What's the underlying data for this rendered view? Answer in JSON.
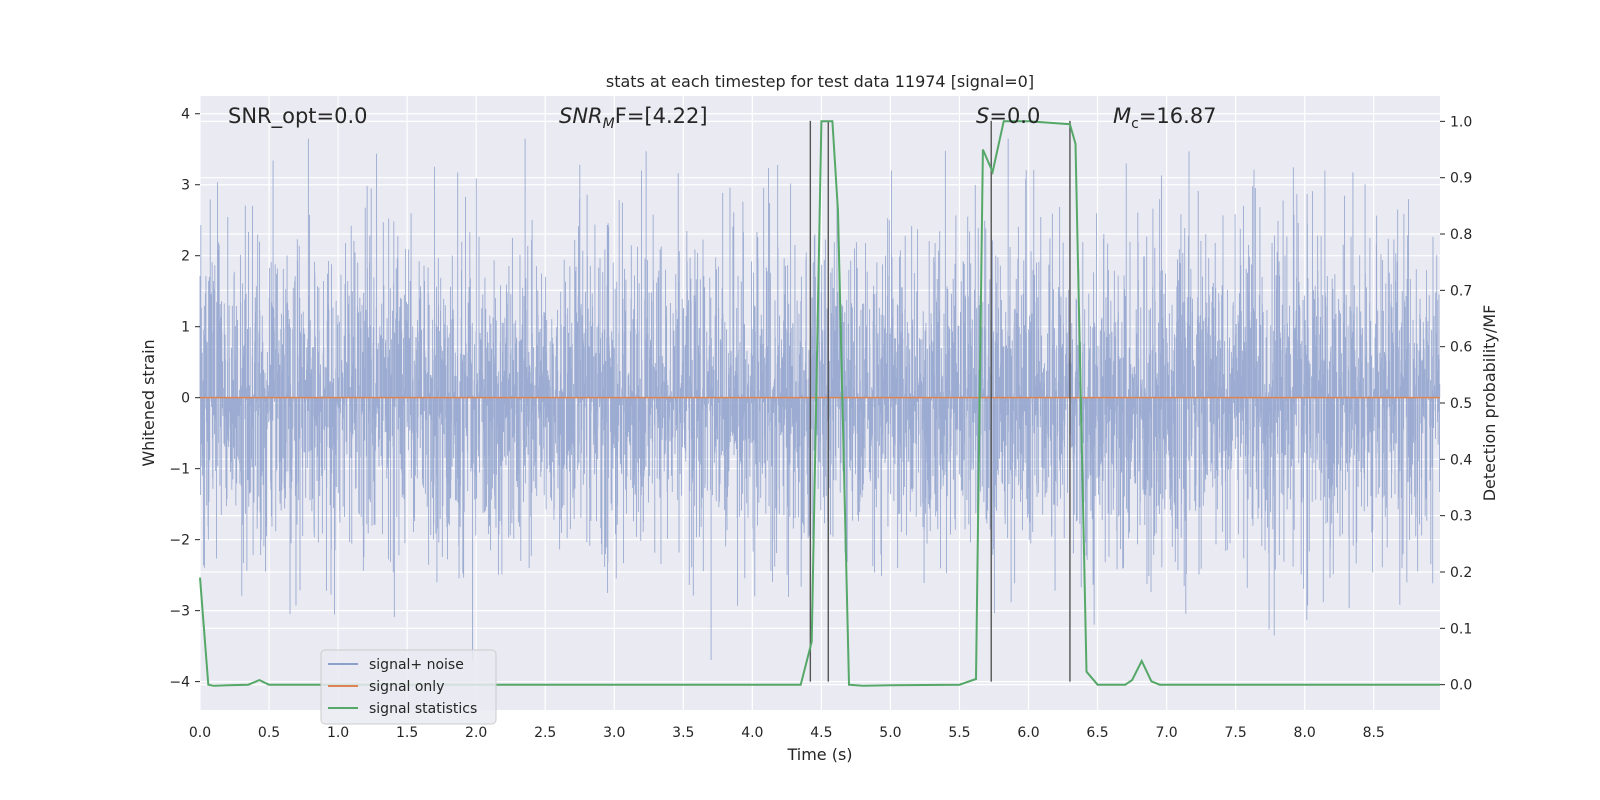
{
  "chart_data": {
    "type": "line",
    "title": "stats at each timestep for test data 11974 [signal=0]",
    "xlabel": "Time (s)",
    "ylabel": "Whitened strain",
    "y2label": "Detection probability/MF",
    "xlim": [
      0,
      8.98
    ],
    "ylim": [
      -4.4,
      4.25
    ],
    "y2lim": [
      -0.045,
      1.045
    ],
    "x_ticks": [
      "0.0",
      "0.5",
      "1.0",
      "1.5",
      "2.0",
      "2.5",
      "3.0",
      "3.5",
      "4.0",
      "4.5",
      "5.0",
      "5.5",
      "6.0",
      "6.5",
      "7.0",
      "7.5",
      "8.0",
      "8.5"
    ],
    "y_ticks": [
      "−4",
      "−3",
      "−2",
      "−1",
      "0",
      "1",
      "2",
      "3",
      "4"
    ],
    "y2_ticks": [
      "0.0",
      "0.1",
      "0.2",
      "0.3",
      "0.4",
      "0.5",
      "0.6",
      "0.7",
      "0.8",
      "0.9",
      "1.0"
    ],
    "grid": true,
    "legend_position": "lower-left",
    "colors": {
      "noise": "#8da0cb",
      "signal": "#dd8452",
      "stats": "#55a868",
      "vlines": "#555555",
      "background": "#eaeaf2",
      "grid": "#ffffff"
    },
    "annotations": {
      "snr_opt": "SNR_opt=0.0",
      "snr_mf_base": "SNR",
      "snr_mf_sub": "M",
      "snr_mf_rest": "F=[4.22]",
      "s_label": "S",
      "s_rest": "=0.0",
      "mc_base": "M",
      "mc_sub": "c",
      "mc_rest": "=16.87"
    },
    "series": [
      {
        "name": "signal+ noise",
        "kind": "noise",
        "description_range": [
          -3.6,
          3.6
        ],
        "x_range": [
          0,
          8.98
        ]
      },
      {
        "name": "signal only",
        "kind": "constant",
        "value": 0
      },
      {
        "name": "signal statistics",
        "axis": "y2",
        "x": [
          0.0,
          0.06,
          0.1,
          0.2,
          0.35,
          0.43,
          0.5,
          0.6,
          1.0,
          2.0,
          3.0,
          4.0,
          4.35,
          4.43,
          4.5,
          4.58,
          4.62,
          4.7,
          4.8,
          5.0,
          5.5,
          5.62,
          5.67,
          5.74,
          5.82,
          6.0,
          6.3,
          6.34,
          6.42,
          6.5,
          6.6,
          6.7,
          6.75,
          6.82,
          6.89,
          6.95,
          7.2,
          8.0,
          8.98
        ],
        "y": [
          0.19,
          0.0,
          -0.002,
          -0.001,
          0.0,
          0.008,
          0.0,
          0.0,
          0.0,
          0.0,
          0.0,
          0.0,
          0.0,
          0.076,
          1.0,
          1.0,
          0.84,
          0.0,
          -0.002,
          -0.001,
          0.0,
          0.01,
          0.95,
          0.91,
          1.0,
          1.0,
          0.995,
          0.96,
          0.023,
          0.0,
          0.0,
          0.0,
          0.008,
          0.042,
          0.006,
          0.0,
          0.0,
          0.0,
          0.0
        ]
      }
    ],
    "vlines": [
      {
        "x": 4.42,
        "y_from": -4.0,
        "y_to": 3.9
      },
      {
        "x": 4.55,
        "y_from": -4.0,
        "y_to": 3.9
      },
      {
        "x": 5.73,
        "y_from": -4.0,
        "y_to": 3.9
      },
      {
        "x": 6.3,
        "y_from": -4.0,
        "y_to": 3.9
      }
    ]
  },
  "legend": {
    "items": [
      {
        "label": "signal+ noise",
        "color": "#8da0cb"
      },
      {
        "label": "signal only",
        "color": "#dd8452"
      },
      {
        "label": "signal statistics",
        "color": "#55a868"
      }
    ]
  }
}
